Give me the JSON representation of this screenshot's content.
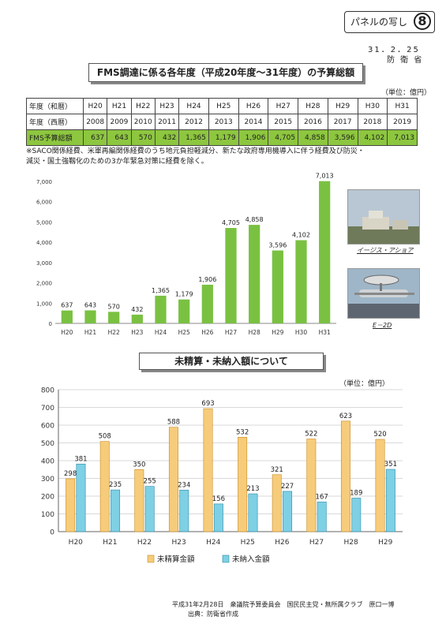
{
  "header": {
    "panel_label": "パネルの写し",
    "panel_number": "8",
    "date": "31．2．25",
    "ministry": "防 衛 省"
  },
  "budget_section": {
    "title": "FMS調達に係る各年度（平成20年度～31年度）の予算総額",
    "unit": "（単位：億円）",
    "row_labels": [
      "年度（和暦）",
      "年度（西暦）",
      "FMS予算総額"
    ],
    "years_jp": [
      "H20",
      "H21",
      "H22",
      "H23",
      "H24",
      "H25",
      "H26",
      "H27",
      "H28",
      "H29",
      "H30",
      "H31"
    ],
    "years_ad": [
      "2008",
      "2009",
      "2010",
      "2011",
      "2012",
      "2013",
      "2014",
      "2015",
      "2016",
      "2017",
      "2018",
      "2019"
    ],
    "amounts": [
      "637",
      "643",
      "570",
      "432",
      "1,365",
      "1,179",
      "1,906",
      "4,705",
      "4,858",
      "3,596",
      "4,102",
      "7,013"
    ],
    "note_line1": "※SACO関係経費、米軍再編関係経費のうち地元負担軽減分、新たな政府専用機導入に伴う経費及び防災・",
    "note_line2": "減災・国土強靱化のための3か年緊急対策に経費を除く。"
  },
  "photos": {
    "aegis_caption": "イージス・アショア",
    "e2d_caption": "E－2D"
  },
  "unpaid_section": {
    "title": "未精算・未納入額について",
    "unit": "（単位：億円）"
  },
  "footer": {
    "line1": "平成31年2月28日　衆議院予算委員会　国民民主党・無所属クラブ　原口一博",
    "line2": "出典：防衛省作成"
  },
  "colors": {
    "fms_bar": "#7ac142",
    "unsettled_bar": "#f6cc7a",
    "undelivered_bar": "#7ed0e4",
    "table_highlight": "#8dc63f"
  },
  "chart_data": [
    {
      "type": "bar",
      "categories": [
        "H20",
        "H21",
        "H22",
        "H23",
        "H24",
        "H25",
        "H26",
        "H27",
        "H28",
        "H29",
        "H30",
        "H31"
      ],
      "values": [
        637,
        643,
        570,
        432,
        1365,
        1179,
        1906,
        4705,
        4858,
        3596,
        4102,
        7013
      ],
      "data_labels": [
        "637",
        "643",
        "570",
        "432",
        "1,365",
        "1,179",
        "1,906",
        "4,705",
        "4,858",
        "3,596",
        "4,102",
        "7,013"
      ],
      "y_ticks": [
        "0",
        "1,000",
        "2,000",
        "3,000",
        "4,000",
        "5,000",
        "6,000",
        "7,000"
      ],
      "ylim": [
        0,
        7000
      ],
      "grid": false
    },
    {
      "type": "bar",
      "categories": [
        "H20",
        "H21",
        "H22",
        "H23",
        "H24",
        "H25",
        "H26",
        "H27",
        "H28",
        "H29"
      ],
      "series": [
        {
          "name": "未精算金額",
          "values": [
            298,
            508,
            350,
            588,
            693,
            532,
            321,
            522,
            623,
            520
          ]
        },
        {
          "name": "未納入金額",
          "values": [
            381,
            235,
            255,
            234,
            156,
            213,
            227,
            167,
            189,
            351
          ]
        }
      ],
      "y_ticks": [
        "0",
        "100",
        "200",
        "300",
        "400",
        "500",
        "600",
        "700",
        "800"
      ],
      "ylim": [
        0,
        800
      ],
      "grid": true,
      "legend": "bottom-center"
    }
  ]
}
